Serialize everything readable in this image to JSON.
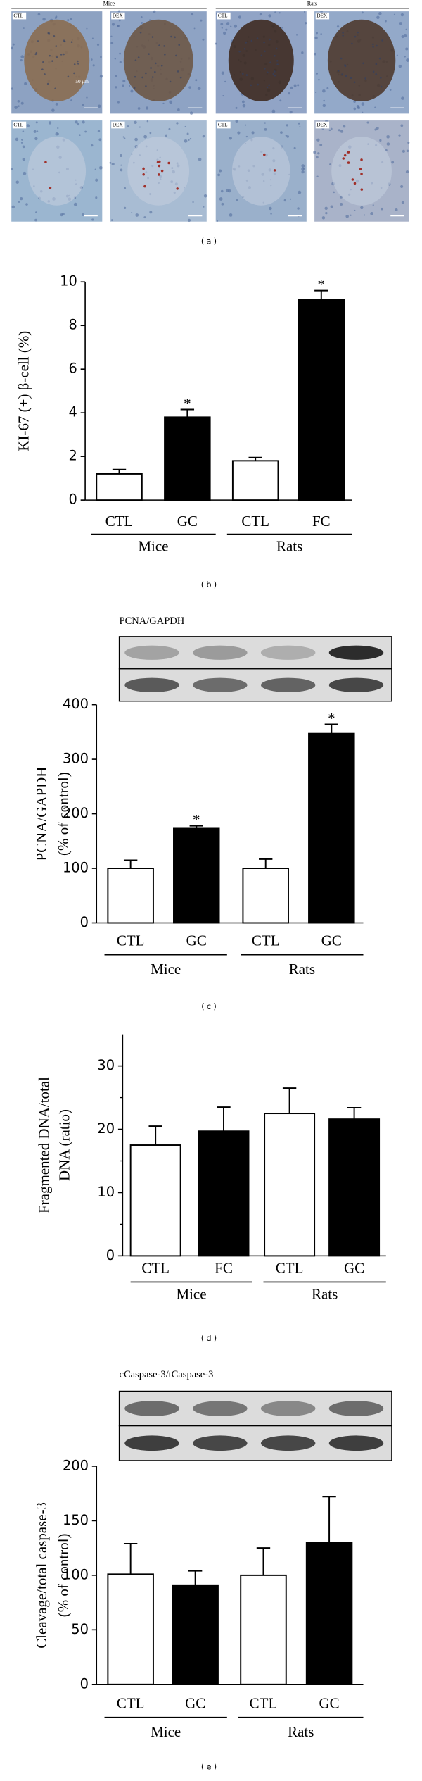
{
  "panel_a": {
    "label": "(a)",
    "groups": [
      "Mice",
      "Rats"
    ],
    "rows": [
      [
        "CTL",
        "DEX",
        "CTL",
        "DEX"
      ],
      [
        "CTL",
        "DEX",
        "CTL",
        "DEX"
      ]
    ],
    "scale_bar": "50 μm"
  },
  "chart_data": [
    {
      "type": "bar",
      "panel_label": "(b)",
      "ylabel": [
        "KI-67 (+) β-cell (%)"
      ],
      "categories": [
        "CTL",
        "GC",
        "CTL",
        "FC"
      ],
      "groups": [
        "Mice",
        "Rats"
      ],
      "values": [
        1.2,
        3.8,
        1.8,
        9.2
      ],
      "errors": [
        0.2,
        0.35,
        0.15,
        0.4
      ],
      "colors": [
        "#ffffff",
        "#000000",
        "#ffffff",
        "#000000"
      ],
      "markers": [
        null,
        "*",
        null,
        "*"
      ],
      "ylim": [
        0,
        10
      ],
      "yticks": [
        0,
        2,
        4,
        6,
        8,
        10
      ]
    },
    {
      "type": "bar",
      "panel_label": "(c)",
      "blot_title": "PCNA/GAPDH",
      "ylabel": [
        "PCNA/GAPDH",
        "(% of control)"
      ],
      "categories": [
        "CTL",
        "GC",
        "CTL",
        "GC"
      ],
      "groups": [
        "Mice",
        "Rats"
      ],
      "values": [
        100,
        173,
        100,
        347
      ],
      "errors": [
        15,
        5,
        17,
        17
      ],
      "colors": [
        "#ffffff",
        "#000000",
        "#ffffff",
        "#000000"
      ],
      "markers": [
        null,
        "*",
        null,
        "*"
      ],
      "ylim": [
        0,
        400
      ],
      "yticks": [
        0,
        100,
        200,
        300,
        400
      ]
    },
    {
      "type": "bar",
      "panel_label": "(d)",
      "ylabel": [
        "Fragmented DNA/total",
        "DNA (ratio)"
      ],
      "categories": [
        "CTL",
        "FC",
        "CTL",
        "GC"
      ],
      "groups": [
        "Mice",
        "Rats"
      ],
      "values": [
        17.5,
        19.7,
        22.5,
        21.6
      ],
      "errors": [
        3,
        3.8,
        4,
        1.8
      ],
      "colors": [
        "#ffffff",
        "#000000",
        "#ffffff",
        "#000000"
      ],
      "ylim": [
        0,
        35
      ],
      "yticks": [
        0,
        10,
        20,
        30
      ],
      "minor_yticks": [
        5,
        15,
        25
      ]
    },
    {
      "type": "bar",
      "panel_label": "(e)",
      "blot_title": "cCaspase-3/tCaspase-3",
      "ylabel": [
        "Cleavage/total caspase-3",
        "(% of control)"
      ],
      "categories": [
        "CTL",
        "GC",
        "CTL",
        "GC"
      ],
      "groups": [
        "Mice",
        "Rats"
      ],
      "values": [
        101,
        91,
        100,
        130
      ],
      "errors": [
        28,
        13,
        25,
        42
      ],
      "colors": [
        "#ffffff",
        "#000000",
        "#ffffff",
        "#000000"
      ],
      "ylim": [
        0,
        200
      ],
      "yticks": [
        0,
        50,
        100,
        150,
        200
      ]
    }
  ]
}
